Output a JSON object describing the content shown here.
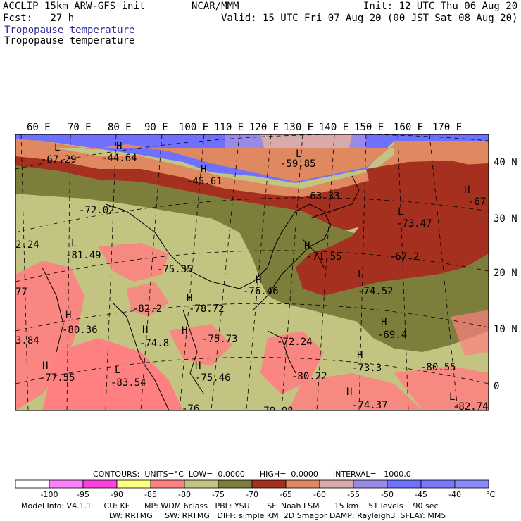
{
  "header": {
    "left_line1": "ACCLIP 15km ARW-GFS init",
    "left_line2": "Fcst:   27 h",
    "center": "NCAR/MMM",
    "right_line1": "Init: 12 UTC Thu 06 Aug 20",
    "right_line2": "Valid: 15 UTC Fri 07 Aug 20 (00 JST Sat 08 Aug 20)",
    "field_title_1": "Tropopause temperature",
    "field_title_2": "Tropopause temperature"
  },
  "longitude_labels": [
    "60 E",
    "70 E",
    "80 E",
    "90 E",
    "100 E",
    "110 E",
    "120 E",
    "130 E",
    "140 E",
    "150 E",
    "160 E",
    "170 E"
  ],
  "latitude_labels": [
    "40 N",
    "30 N",
    "20 N",
    "10 N",
    "0"
  ],
  "map_annotations": [
    {
      "mark": "L",
      "value": "-67.29"
    },
    {
      "mark": "H",
      "value": "-44.64"
    },
    {
      "mark": "H",
      "value": "-45.61"
    },
    {
      "mark": "L",
      "value": "-59.85"
    },
    {
      "mark": "",
      "value": "-63.33"
    },
    {
      "mark": "H",
      "value": "-67"
    },
    {
      "mark": "",
      "value": "-72.02"
    },
    {
      "mark": "L",
      "value": "-73.47"
    },
    {
      "mark": "",
      "value": "2.24"
    },
    {
      "mark": "L",
      "value": "-81.49"
    },
    {
      "mark": "",
      "value": "-75.35"
    },
    {
      "mark": "H",
      "value": "-71.55"
    },
    {
      "mark": "",
      "value": "-67.2"
    },
    {
      "mark": "",
      "value": "77"
    },
    {
      "mark": "H",
      "value": "-76.46"
    },
    {
      "mark": "L",
      "value": "-74.52"
    },
    {
      "mark": "",
      "value": "-82.2"
    },
    {
      "mark": "H",
      "value": "-78.72"
    },
    {
      "mark": "H",
      "value": "-80.36"
    },
    {
      "mark": "H",
      "value": "-69.4"
    },
    {
      "mark": "",
      "value": "3.84"
    },
    {
      "mark": "H",
      "value": "-74.8"
    },
    {
      "mark": "H",
      "value": "-75.73"
    },
    {
      "mark": "",
      "value": "-72.24"
    },
    {
      "mark": "H",
      "value": "-73.3"
    },
    {
      "mark": "",
      "value": "-80.55"
    },
    {
      "mark": "H",
      "value": "-77.55"
    },
    {
      "mark": "L",
      "value": "-83.54"
    },
    {
      "mark": "H",
      "value": "-75.46"
    },
    {
      "mark": "",
      "value": "-80.22"
    },
    {
      "mark": "H",
      "value": "-74.37"
    },
    {
      "mark": "L",
      "value": "-82.74"
    },
    {
      "mark": "",
      "value": "-76"
    },
    {
      "mark": "",
      "value": "-79.08"
    }
  ],
  "contour_info": "CONTOURS:  UNITS=°C  LOW=  0.0000      HIGH=  0.0000      INTERVAL=   1000.0",
  "legend": {
    "unit": "°C",
    "colors": [
      "#ffffff",
      "#ff80ff",
      "#ff40e0",
      "#ffff80",
      "#ff8080",
      "#c4c482",
      "#7e7e3c",
      "#a63020",
      "#e08860",
      "#d8aaaa",
      "#9a8ae8",
      "#7070ff",
      "#7878ff",
      "#8888ff"
    ],
    "ticks": [
      "-100",
      "-95",
      "-90",
      "-85",
      "-80",
      "-75",
      "-70",
      "-65",
      "-60",
      "-55",
      "-50",
      "-45",
      "-40"
    ]
  },
  "footer": {
    "line1": "Model Info: V4.1.1     CU: KF      MP: WDM 6class   PBL: YSU       SF: Noah LSM      15 km    51 levels    90 sec",
    "line2": "LW: RRTMG     SW: RRTMG   DIFF: simple KM: 2D Smagor DAMP: Rayleigh3  SFLAY: MM5"
  },
  "colors": {
    "olive_light": "#c4c482",
    "olive_dark": "#7e7e3c",
    "brick": "#a63020",
    "orange": "#e08860",
    "pink_brown": "#d8aaaa",
    "lavender": "#9a8ae8",
    "blue": "#7070ff",
    "salmon": "#ff8080"
  }
}
